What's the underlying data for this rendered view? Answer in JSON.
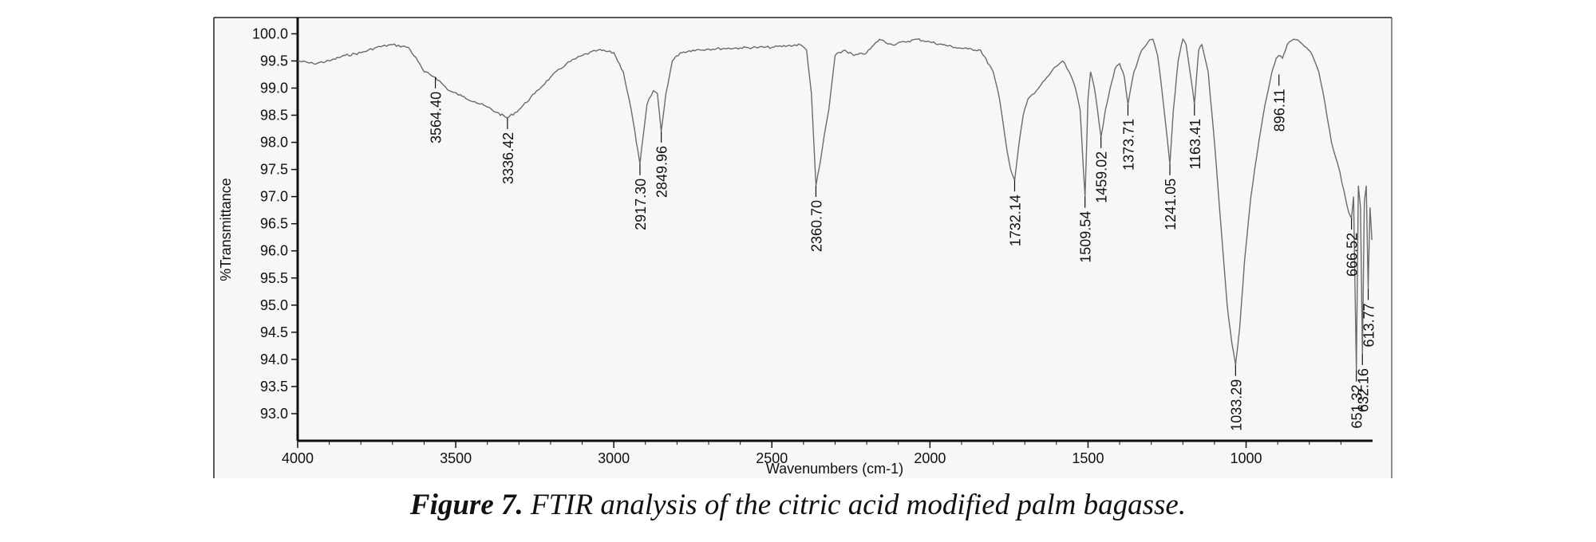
{
  "caption": {
    "figure_number": "Figure 7.",
    "text": " FTIR analysis of the citric acid modified palm bagasse."
  },
  "chart_data": {
    "type": "line",
    "title": "",
    "xlabel": "Wavenumbers (cm-1)",
    "ylabel": "%Transmittance",
    "xlim": [
      4000,
      600
    ],
    "ylim": [
      92.5,
      100.3
    ],
    "x_reversed": true,
    "grid": false,
    "x_ticks": [
      4000,
      3500,
      3000,
      2500,
      2000,
      1500,
      1000
    ],
    "y_ticks": [
      93.0,
      93.5,
      94.0,
      94.5,
      95.0,
      95.5,
      96.0,
      96.5,
      97.0,
      97.5,
      98.0,
      98.5,
      99.0,
      99.5,
      100.0
    ],
    "series": [
      {
        "color": "#6b6b6b",
        "x": [
          4000,
          3950,
          3900,
          3850,
          3800,
          3750,
          3700,
          3650,
          3620,
          3600,
          3564.4,
          3520,
          3480,
          3440,
          3400,
          3370,
          3336.42,
          3300,
          3250,
          3200,
          3150,
          3100,
          3050,
          3000,
          2970,
          2945,
          2917.3,
          2895,
          2875,
          2862,
          2849.96,
          2835,
          2815,
          2790,
          2750,
          2700,
          2650,
          2600,
          2550,
          2500,
          2450,
          2410,
          2390,
          2375,
          2360.7,
          2348,
          2335,
          2320,
          2300,
          2270,
          2240,
          2200,
          2160,
          2120,
          2080,
          2040,
          2000,
          1960,
          1920,
          1880,
          1840,
          1800,
          1780,
          1760,
          1745,
          1732.14,
          1720,
          1705,
          1690,
          1670,
          1650,
          1630,
          1600,
          1580,
          1560,
          1540,
          1525,
          1509.54,
          1500,
          1492,
          1480,
          1470,
          1459.02,
          1445,
          1430,
          1415,
          1400,
          1385,
          1373.71,
          1355,
          1330,
          1310,
          1295,
          1280,
          1265,
          1250,
          1241.05,
          1230,
          1215,
          1200,
          1190,
          1175,
          1163.41,
          1150,
          1140,
          1120,
          1100,
          1080,
          1060,
          1045,
          1033.29,
          1020,
          1005,
          985,
          960,
          940,
          920,
          905,
          896.11,
          885,
          870,
          850,
          830,
          810,
          790,
          770,
          750,
          730,
          710,
          690,
          675,
          666.52,
          660,
          651.32,
          645,
          638,
          632.16,
          626,
          620,
          613.77,
          608,
          602
        ],
        "y": [
          99.5,
          99.45,
          99.5,
          99.6,
          99.65,
          99.75,
          99.8,
          99.75,
          99.5,
          99.3,
          99.2,
          98.95,
          98.85,
          98.75,
          98.65,
          98.55,
          98.45,
          98.6,
          98.9,
          99.2,
          99.45,
          99.6,
          99.7,
          99.65,
          99.3,
          98.6,
          97.6,
          98.7,
          98.95,
          98.9,
          98.2,
          98.9,
          99.5,
          99.65,
          99.7,
          99.72,
          99.73,
          99.74,
          99.75,
          99.75,
          99.78,
          99.8,
          99.7,
          98.9,
          97.2,
          97.6,
          98.1,
          98.6,
          99.6,
          99.7,
          99.6,
          99.65,
          99.9,
          99.8,
          99.85,
          99.9,
          99.85,
          99.8,
          99.75,
          99.72,
          99.7,
          99.3,
          98.8,
          98.0,
          97.5,
          97.3,
          97.9,
          98.5,
          98.8,
          98.9,
          99.05,
          99.2,
          99.4,
          99.5,
          99.3,
          99.0,
          98.6,
          97.0,
          98.8,
          99.3,
          99.0,
          98.6,
          98.1,
          98.6,
          99.0,
          99.35,
          99.45,
          99.2,
          98.7,
          99.3,
          99.7,
          99.85,
          99.9,
          99.6,
          98.9,
          98.1,
          97.6,
          98.6,
          99.5,
          99.9,
          99.8,
          99.2,
          98.7,
          99.7,
          99.8,
          99.3,
          98.0,
          96.5,
          95.0,
          94.3,
          93.9,
          94.6,
          95.8,
          97.0,
          98.0,
          98.7,
          99.25,
          99.55,
          99.6,
          99.55,
          99.8,
          99.9,
          99.85,
          99.75,
          99.6,
          99.3,
          98.7,
          98.0,
          97.6,
          97.1,
          96.7,
          96.6,
          97.0,
          93.8,
          97.2,
          96.8,
          94.1,
          96.9,
          97.2,
          95.3,
          96.8,
          96.2
        ]
      }
    ],
    "annotations": [
      {
        "label": "3564.40",
        "x": 3564.4,
        "y": 99.2
      },
      {
        "label": "3336.42",
        "x": 3336.42,
        "y": 98.45
      },
      {
        "label": "2917.30",
        "x": 2917.3,
        "y": 97.6
      },
      {
        "label": "2849.96",
        "x": 2849.96,
        "y": 98.2
      },
      {
        "label": "2360.70",
        "x": 2360.7,
        "y": 97.2
      },
      {
        "label": "1732.14",
        "x": 1732.14,
        "y": 97.3
      },
      {
        "label": "1509.54",
        "x": 1509.54,
        "y": 97.0
      },
      {
        "label": "1459.02",
        "x": 1459.02,
        "y": 98.1
      },
      {
        "label": "1373.71",
        "x": 1373.71,
        "y": 98.7
      },
      {
        "label": "1241.05",
        "x": 1241.05,
        "y": 97.6
      },
      {
        "label": "1163.41",
        "x": 1163.41,
        "y": 98.7
      },
      {
        "label": "1033.29",
        "x": 1033.29,
        "y": 93.9
      },
      {
        "label": "896.11",
        "x": 896.11,
        "y": 99.25
      },
      {
        "label": "666.52",
        "x": 666.52,
        "y": 96.6
      },
      {
        "label": "651.32",
        "x": 651.32,
        "y": 93.8
      },
      {
        "label": "632.16",
        "x": 632.16,
        "y": 94.1
      },
      {
        "label": "613.77",
        "x": 613.77,
        "y": 95.3
      }
    ]
  }
}
